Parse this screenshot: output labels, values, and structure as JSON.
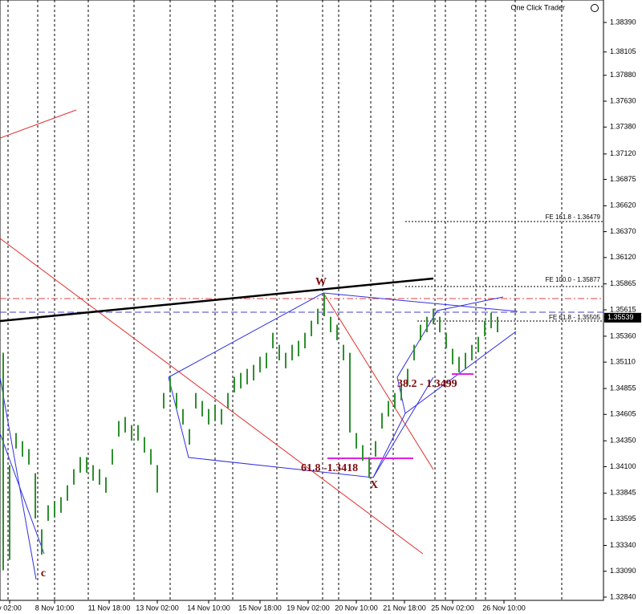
{
  "chart_data": {
    "type": "candlestick",
    "title": "One Click Trader",
    "ylim": [
      1.32809,
      1.38607
    ],
    "xlim": [
      -0.5,
      93.5
    ],
    "yticks": [
      {
        "value": 1.3839,
        "label": "1.38390"
      },
      1.38105,
      {
        "value": 1.3788,
        "label": "1.37880"
      },
      {
        "value": 1.3763,
        "label": "1.37630"
      },
      {
        "value": 1.3738,
        "label": "1.37380"
      },
      {
        "value": 1.3712,
        "label": "1.37120"
      },
      1.36875,
      {
        "value": 1.3662,
        "label": "1.36620"
      },
      {
        "value": 1.3637,
        "label": "1.36370"
      },
      {
        "value": 1.3612,
        "label": "1.36120"
      },
      1.35865,
      1.35615,
      {
        "value": 1.3536,
        "label": "1.35360"
      },
      {
        "value": 1.3511,
        "label": "1.35110"
      },
      1.34855,
      1.34605,
      {
        "value": 1.3435,
        "label": "1.34350"
      },
      {
        "value": 1.341,
        "label": "1.34100"
      },
      1.33845,
      1.33595,
      {
        "value": 1.3334,
        "label": "1.33340"
      },
      {
        "value": 1.3309,
        "label": "1.33090"
      },
      {
        "value": 1.3284,
        "label": "1.32840"
      }
    ],
    "xticks": [
      {
        "value": 1,
        "label": "v 02:00"
      },
      {
        "value": 8,
        "label": "8 Nov 10:00"
      },
      {
        "value": 16.5,
        "label": "11 Nov 18:00"
      },
      {
        "value": 24,
        "label": "13 Nov 02:00"
      },
      {
        "value": 32,
        "label": "14 Nov 10:00"
      },
      {
        "value": 40,
        "label": "15 Nov 18:00"
      },
      {
        "value": 47.5,
        "label": "19 Nov 02:00"
      },
      {
        "value": 55,
        "label": "20 Nov 10:00"
      },
      {
        "value": 62.5,
        "label": "21 Nov 18:00"
      },
      {
        "value": 70,
        "label": "25 Nov 02:00"
      },
      {
        "value": 78,
        "label": "26 Nov 10:00"
      }
    ],
    "last_price": 1.35539,
    "annotations": [
      "W",
      "X",
      "c",
      "61.8 -1.3418",
      "38.2 - 1.3499",
      "FE 161.8 - 1.36479",
      "FE 100.0 - 1.35877",
      "FE 61.8 - 1.35505"
    ],
    "series": [
      {
        "color": "#2f8f2f",
        "high": [
          1.352,
          1.34115,
          1.34425,
          1.34347,
          1.3427,
          1.34037,
          1.33495,
          1.33727,
          1.33766,
          1.33805,
          1.33921,
          1.34076,
          1.34192,
          1.34192,
          1.34115,
          1.34076,
          1.33998,
          1.3427,
          1.34541,
          1.3458,
          1.34502,
          1.34502,
          1.34386,
          1.3427,
          1.34115,
          1.34812,
          1.34967,
          1.34812,
          1.34657,
          1.34463,
          1.34812,
          1.34735,
          1.34657,
          1.34696,
          1.34657,
          1.34812,
          1.34967,
          1.35006,
          1.35045,
          1.35083,
          1.35161,
          1.352,
          1.35393,
          1.35277,
          1.352,
          1.35277,
          1.35316,
          1.35393,
          1.3551,
          1.35626,
          1.3577,
          1.35548,
          1.35471,
          1.35277,
          1.352,
          1.34425,
          1.34308,
          1.34192,
          1.34347,
          1.34618,
          1.34735,
          1.34812,
          1.3489,
          1.35045,
          1.35277,
          1.35471,
          1.35548,
          1.35626,
          1.35548,
          1.35393,
          1.35238,
          1.35161,
          1.352,
          1.35277,
          1.35354,
          1.3551,
          1.35587,
          1.35548
        ],
        "low": [
          1.331,
          1.332,
          1.34275,
          1.34197,
          1.3412,
          1.336,
          1.3325,
          1.33577,
          1.33616,
          1.33655,
          1.33771,
          1.33926,
          1.34042,
          1.34042,
          1.33965,
          1.33926,
          1.33848,
          1.3412,
          1.34391,
          1.3443,
          1.34352,
          1.34352,
          1.34236,
          1.3412,
          1.3385,
          1.34662,
          1.34817,
          1.34662,
          1.34507,
          1.34313,
          1.34662,
          1.34585,
          1.34507,
          1.34546,
          1.34507,
          1.34662,
          1.34817,
          1.34856,
          1.34895,
          1.34933,
          1.35011,
          1.3505,
          1.35243,
          1.35127,
          1.3505,
          1.35127,
          1.35166,
          1.35243,
          1.3536,
          1.35476,
          1.35553,
          1.35398,
          1.35321,
          1.35127,
          1.3443,
          1.34275,
          1.34158,
          1.3399,
          1.34197,
          1.34468,
          1.34585,
          1.34662,
          1.3474,
          1.34895,
          1.35127,
          1.35321,
          1.35398,
          1.35476,
          1.35398,
          1.35243,
          1.35088,
          1.35011,
          1.3505,
          1.35127,
          1.35204,
          1.3536,
          1.35437,
          1.35398
        ]
      }
    ]
  }
}
